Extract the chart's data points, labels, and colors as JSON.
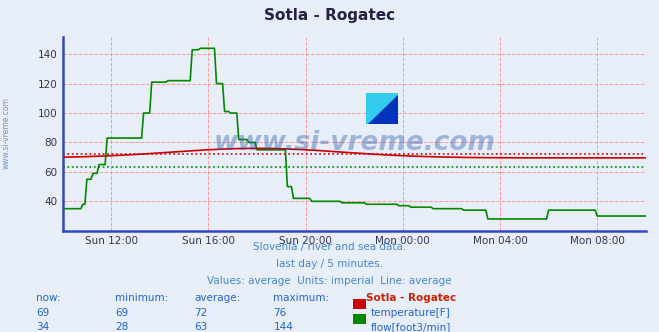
{
  "title": "Sotla - Rogatec",
  "background_color": "#e8eef8",
  "plot_bg_color": "#e8eef8",
  "ylim": [
    20,
    152
  ],
  "yticks": [
    40,
    60,
    80,
    100,
    120,
    140
  ],
  "xlabel_ticks": [
    "Sun 12:00",
    "Sun 16:00",
    "Sun 20:00",
    "Mon 00:00",
    "Mon 04:00",
    "Mon 08:00"
  ],
  "temp_avg": 72,
  "flow_avg": 63,
  "temp_color": "#cc0000",
  "flow_color": "#008800",
  "grid_color": "#ff9999",
  "watermark_text": "www.si-vreme.com",
  "watermark_color": "#2255aa",
  "watermark_alpha": 0.38,
  "subtitle1": "Slovenia / river and sea data.",
  "subtitle2": "last day / 5 minutes.",
  "subtitle3": "Values: average  Units: imperial  Line: average",
  "subtitle_color": "#4488cc",
  "bottom_label_color": "#2266cc",
  "title_color": "#222244",
  "x_axis_color": "#3344cc",
  "y_axis_color": "#3344cc",
  "sidebar_text": "www.si-vreme.com",
  "sidebar_color": "#4477aa",
  "xtick_pos": [
    2,
    6,
    10,
    14,
    18,
    22
  ],
  "temp_vals": [
    "69",
    "69",
    "72",
    "76"
  ],
  "flow_vals": [
    "34",
    "28",
    "63",
    "144"
  ],
  "stat_headers": [
    "now:",
    "minimum:",
    "average:",
    "maximum:",
    "Sotla - Rogatec"
  ]
}
